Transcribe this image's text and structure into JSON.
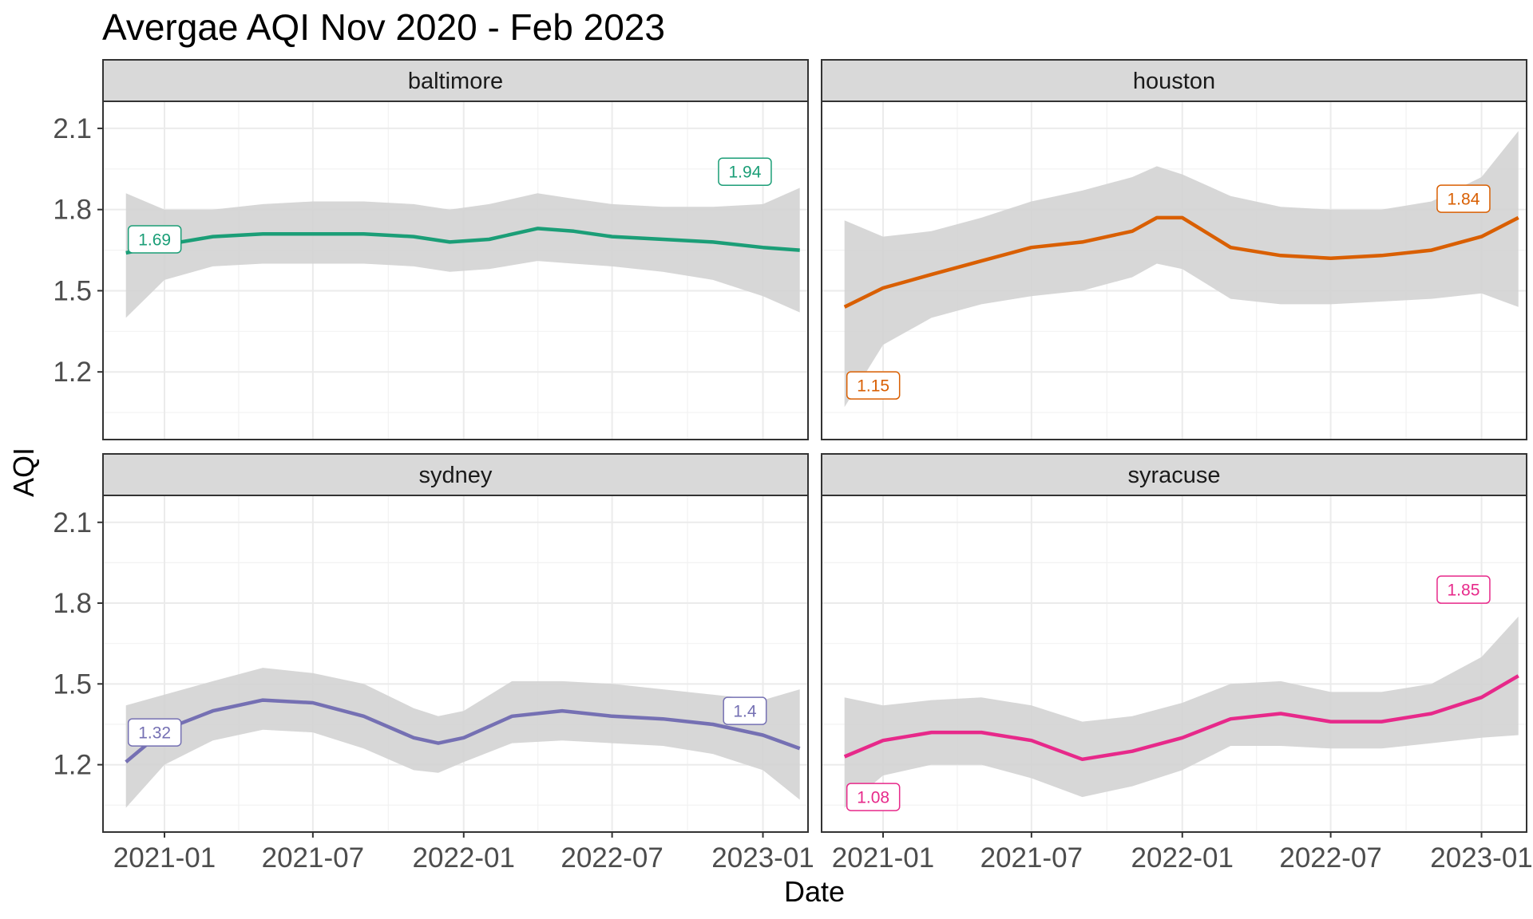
{
  "chart_data": {
    "type": "line",
    "title": "Avergae AQI Nov 2020 - Feb 2023",
    "xlabel": "Date",
    "ylabel": "AQI",
    "ylim": [
      0.95,
      2.2
    ],
    "yticks": [
      1.2,
      1.5,
      1.8,
      2.1
    ],
    "xlim": [
      "2020-10-18",
      "2023-02-25"
    ],
    "xticks": [
      {
        "date": "2021-01-01",
        "label": "2021-01"
      },
      {
        "date": "2021-07-01",
        "label": "2021-07"
      },
      {
        "date": "2022-01-01",
        "label": "2022-01"
      },
      {
        "date": "2022-07-01",
        "label": "2022-07"
      },
      {
        "date": "2023-01-01",
        "label": "2023-01"
      }
    ],
    "band_color": "#d3d3d3",
    "panels": [
      {
        "name": "baltimore",
        "color": "#1b9e77",
        "x": [
          "2020-11-15",
          "2021-01-01",
          "2021-03-01",
          "2021-05-01",
          "2021-07-01",
          "2021-09-01",
          "2021-11-01",
          "2021-12-15",
          "2022-02-01",
          "2022-04-01",
          "2022-05-15",
          "2022-07-01",
          "2022-09-01",
          "2022-11-01",
          "2023-01-01",
          "2023-02-15"
        ],
        "y": [
          1.64,
          1.67,
          1.7,
          1.71,
          1.71,
          1.71,
          1.7,
          1.68,
          1.69,
          1.73,
          1.72,
          1.7,
          1.69,
          1.68,
          1.66,
          1.65
        ],
        "lower": [
          1.4,
          1.54,
          1.59,
          1.6,
          1.6,
          1.6,
          1.59,
          1.57,
          1.58,
          1.61,
          1.6,
          1.59,
          1.57,
          1.54,
          1.48,
          1.42
        ],
        "upper": [
          1.86,
          1.8,
          1.8,
          1.82,
          1.83,
          1.83,
          1.82,
          1.8,
          1.82,
          1.86,
          1.84,
          1.82,
          1.81,
          1.81,
          1.82,
          1.88
        ],
        "labels": [
          {
            "date": "2020-12-20",
            "y": 1.69,
            "text": "1.69"
          },
          {
            "date": "2022-12-10",
            "y": 1.94,
            "text": "1.94"
          }
        ]
      },
      {
        "name": "houston",
        "color": "#d95f02",
        "x": [
          "2020-11-15",
          "2021-01-01",
          "2021-03-01",
          "2021-05-01",
          "2021-07-01",
          "2021-09-01",
          "2021-11-01",
          "2021-12-01",
          "2022-01-01",
          "2022-03-01",
          "2022-05-01",
          "2022-07-01",
          "2022-09-01",
          "2022-11-01",
          "2023-01-01",
          "2023-02-15"
        ],
        "y": [
          1.44,
          1.51,
          1.56,
          1.61,
          1.66,
          1.68,
          1.72,
          1.77,
          1.77,
          1.66,
          1.63,
          1.62,
          1.63,
          1.65,
          1.7,
          1.77
        ],
        "lower": [
          1.07,
          1.3,
          1.4,
          1.45,
          1.48,
          1.5,
          1.55,
          1.6,
          1.58,
          1.47,
          1.45,
          1.45,
          1.46,
          1.47,
          1.49,
          1.44
        ],
        "upper": [
          1.76,
          1.7,
          1.72,
          1.77,
          1.83,
          1.87,
          1.92,
          1.96,
          1.93,
          1.85,
          1.81,
          1.8,
          1.8,
          1.83,
          1.92,
          2.09
        ],
        "labels": [
          {
            "date": "2020-12-20",
            "y": 1.15,
            "text": "1.15"
          },
          {
            "date": "2022-12-10",
            "y": 1.84,
            "text": "1.84"
          }
        ]
      },
      {
        "name": "sydney",
        "color": "#7570b3",
        "x": [
          "2020-11-15",
          "2021-01-01",
          "2021-03-01",
          "2021-05-01",
          "2021-07-01",
          "2021-09-01",
          "2021-11-01",
          "2021-12-01",
          "2022-01-01",
          "2022-03-01",
          "2022-05-01",
          "2022-07-01",
          "2022-09-01",
          "2022-11-01",
          "2023-01-01",
          "2023-02-15"
        ],
        "y": [
          1.21,
          1.33,
          1.4,
          1.44,
          1.43,
          1.38,
          1.3,
          1.28,
          1.3,
          1.38,
          1.4,
          1.38,
          1.37,
          1.35,
          1.31,
          1.26
        ],
        "lower": [
          1.04,
          1.2,
          1.29,
          1.33,
          1.32,
          1.26,
          1.18,
          1.17,
          1.21,
          1.28,
          1.29,
          1.28,
          1.27,
          1.24,
          1.18,
          1.07
        ],
        "upper": [
          1.42,
          1.46,
          1.51,
          1.56,
          1.54,
          1.5,
          1.41,
          1.38,
          1.4,
          1.51,
          1.51,
          1.5,
          1.48,
          1.46,
          1.44,
          1.48
        ],
        "labels": [
          {
            "date": "2020-12-20",
            "y": 1.32,
            "text": "1.32"
          },
          {
            "date": "2022-12-10",
            "y": 1.4,
            "text": "1.4"
          }
        ]
      },
      {
        "name": "syracuse",
        "color": "#e7298a",
        "x": [
          "2020-11-15",
          "2021-01-01",
          "2021-03-01",
          "2021-05-01",
          "2021-07-01",
          "2021-09-01",
          "2021-11-01",
          "2022-01-01",
          "2022-03-01",
          "2022-05-01",
          "2022-07-01",
          "2022-09-01",
          "2022-11-01",
          "2023-01-01",
          "2023-02-15"
        ],
        "y": [
          1.23,
          1.29,
          1.32,
          1.32,
          1.29,
          1.22,
          1.25,
          1.3,
          1.37,
          1.39,
          1.36,
          1.36,
          1.39,
          1.45,
          1.53
        ],
        "lower": [
          1.04,
          1.16,
          1.2,
          1.2,
          1.15,
          1.08,
          1.12,
          1.18,
          1.27,
          1.27,
          1.26,
          1.26,
          1.28,
          1.3,
          1.31
        ],
        "upper": [
          1.45,
          1.42,
          1.44,
          1.45,
          1.42,
          1.36,
          1.38,
          1.43,
          1.5,
          1.51,
          1.47,
          1.47,
          1.5,
          1.6,
          1.75
        ],
        "labels": [
          {
            "date": "2020-12-20",
            "y": 1.08,
            "text": "1.08"
          },
          {
            "date": "2022-12-10",
            "y": 1.85,
            "text": "1.85"
          }
        ]
      }
    ]
  }
}
